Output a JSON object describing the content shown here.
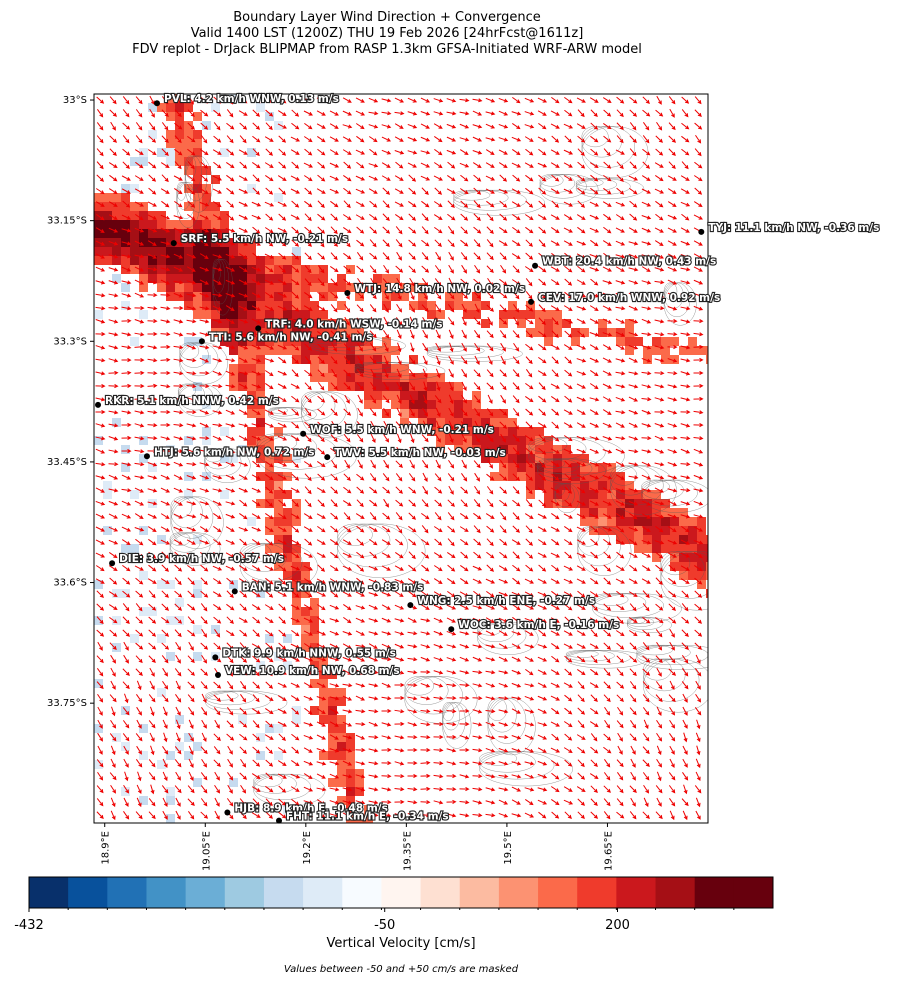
{
  "chart_data": {
    "type": "map",
    "title": [
      "Boundary Layer Wind Direction + Convergence",
      "Valid 1400 LST (1200Z) THU 19 Feb 2026 [24hrFcst@1611z]",
      "FDV replot - DrJack BLIPMAP from RASP 1.3km GFSA-Initiated WRF-ARW model"
    ],
    "xlim": [
      18.884,
      19.8
    ],
    "ylim": [
      -33.899,
      -32.9925
    ],
    "xticks": [
      {
        "value": 18.9,
        "label": "18.9°E"
      },
      {
        "value": 19.05,
        "label": "19.05°E"
      },
      {
        "value": 19.2,
        "label": "19.2°E"
      },
      {
        "value": 19.35,
        "label": "19.35°E"
      },
      {
        "value": 19.5,
        "label": "19.5°E"
      },
      {
        "value": 19.65,
        "label": "19.65°E"
      }
    ],
    "yticks": [
      {
        "value": -33,
        "label": "33°S"
      },
      {
        "value": -33.15,
        "label": "33.15°S"
      },
      {
        "value": -33.3,
        "label": "33.3°S"
      },
      {
        "value": -33.45,
        "label": "33.45°S"
      },
      {
        "value": -33.6,
        "label": "33.6°S"
      },
      {
        "value": -33.75,
        "label": "33.75°S"
      }
    ],
    "stations": [
      {
        "label": "PVL: 4.2 km/h WNW, 0.13 m/s",
        "lon": 18.978,
        "lat": -33.004
      },
      {
        "label": "SRF: 5.5 km/h NW, -0.21 m/s",
        "lon": 19.003,
        "lat": -33.178
      },
      {
        "label": "TYJ: 11.1 km/h NW, -0.36 m/s",
        "lon": 19.79,
        "lat": -33.164
      },
      {
        "label": "WBT: 20.4 km/h NW, 0.43 m/s",
        "lon": 19.542,
        "lat": -33.206
      },
      {
        "label": "WTJ: 14.8 km/h NW, 0.02 m/s",
        "lon": 19.262,
        "lat": -33.24
      },
      {
        "label": "CEV: 17.0 km/h WNW, 0.92 m/s",
        "lon": 19.536,
        "lat": -33.251
      },
      {
        "label": "TRF: 4.0 km/h WSW, -0.14 m/s",
        "lon": 19.129,
        "lat": -33.284
      },
      {
        "label": "TTI: 5.6 km/h NW, -0.41 m/s",
        "lon": 19.045,
        "lat": -33.3
      },
      {
        "label": "RKR: 5.1 km/h NNW, 0.42 m/s",
        "lon": 18.89,
        "lat": -33.379
      },
      {
        "label": "WOF: 5.5 km/h WNW, -0.21 m/s",
        "lon": 19.196,
        "lat": -33.415
      },
      {
        "label": "HTJ: 5.6 km/h NW, 0.72 m/s",
        "lon": 18.963,
        "lat": -33.443
      },
      {
        "label": "TWV: 5.5 km/h NW, -0.03 m/s",
        "lon": 19.232,
        "lat": -33.444
      },
      {
        "label": "DIE: 3.9 km/h NW, -0.57 m/s",
        "lon": 18.911,
        "lat": -33.576
      },
      {
        "label": "BAN: 5.1 km/h WNW, -0.83 m/s",
        "lon": 19.094,
        "lat": -33.611
      },
      {
        "label": "WNG: 2.5 km/h ENE, -0.27 m/s",
        "lon": 19.356,
        "lat": -33.628
      },
      {
        "label": "WOC: 3.6 km/h E, -0.16 m/s",
        "lon": 19.417,
        "lat": -33.658
      },
      {
        "label": "DTK: 9.9 km/h NNW, 0.55 m/s",
        "lon": 19.065,
        "lat": -33.693
      },
      {
        "label": "VEW: 10.9 km/h NW, 0.68 m/s",
        "lon": 19.069,
        "lat": -33.715
      },
      {
        "label": "HJB: 8.9 km/h E, -0.48 m/s",
        "lon": 19.083,
        "lat": -33.886
      },
      {
        "label": "FHT: 11.1 km/h E, -0.34 m/s",
        "lon": 19.16,
        "lat": -33.896
      }
    ],
    "colorbar": {
      "label": "Vertical Velocity [cm/s]",
      "lim": [
        -432,
        367
      ],
      "ticks": [
        -432,
        -50,
        200
      ],
      "colors": [
        "#08306b",
        "#08519c",
        "#2171b5",
        "#4292c6",
        "#6baed6",
        "#9ecae1",
        "#c6dbef",
        "#deebf7",
        "#f7fbff",
        "#fff5f0",
        "#fee0d2",
        "#fcbba1",
        "#fc9272",
        "#fb6a4a",
        "#ef3b2c",
        "#cb181d",
        "#a50f15",
        "#67000d",
        "#67000d"
      ]
    },
    "note": "Values between -50 and +50 cm/s are masked"
  }
}
